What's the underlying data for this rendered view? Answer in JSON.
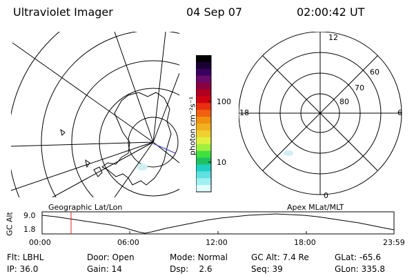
{
  "header": {
    "instrument": "Ultraviolet Imager",
    "date": "04 Sep 07",
    "time": "02:00:42 UT"
  },
  "colorbar": {
    "unit_label": "photon cm⁻²s⁻¹",
    "ticks": [
      "100",
      "10"
    ],
    "colors": [
      "#000000",
      "#1a0033",
      "#3a0060",
      "#6a0a6a",
      "#8a0040",
      "#b00020",
      "#d00010",
      "#e83010",
      "#f06010",
      "#f09010",
      "#f0b020",
      "#f0d030",
      "#e0f040",
      "#a0f040",
      "#40e040",
      "#20c060",
      "#20d0c0",
      "#60e0e0",
      "#a0f0f0",
      "#e0ffff"
    ]
  },
  "left_map": {
    "label": "Geographic Lat/Lon"
  },
  "right_map": {
    "label": "Apex MLat/MLT",
    "lat_labels": [
      "80",
      "70",
      "60"
    ],
    "mlt_labels": [
      "12",
      "18",
      "6",
      "0"
    ]
  },
  "altitude_plot": {
    "ylabel": "GC Alt",
    "yticks": [
      "9.0",
      "1.8"
    ],
    "xticks": [
      "00:00",
      "06:00",
      "12:00",
      "18:00",
      "23:59"
    ]
  },
  "info": {
    "row1": [
      {
        "label": "Flt:",
        "value": "LBHL"
      },
      {
        "label": "Door:",
        "value": "Open"
      },
      {
        "label": "Mode:",
        "value": "Normal"
      },
      {
        "label": "GC Alt:",
        "value": "7.4 Re"
      },
      {
        "label": "GLat:",
        "value": "-65.6"
      }
    ],
    "row2": [
      {
        "label": "IP:",
        "value": "36.0"
      },
      {
        "label": "Gain:",
        "value": "14"
      },
      {
        "label": "Dsp:",
        "value": "2.6"
      },
      {
        "label": "Seq:",
        "value": "39"
      },
      {
        "label": "GLon:",
        "value": "335.8"
      }
    ]
  }
}
